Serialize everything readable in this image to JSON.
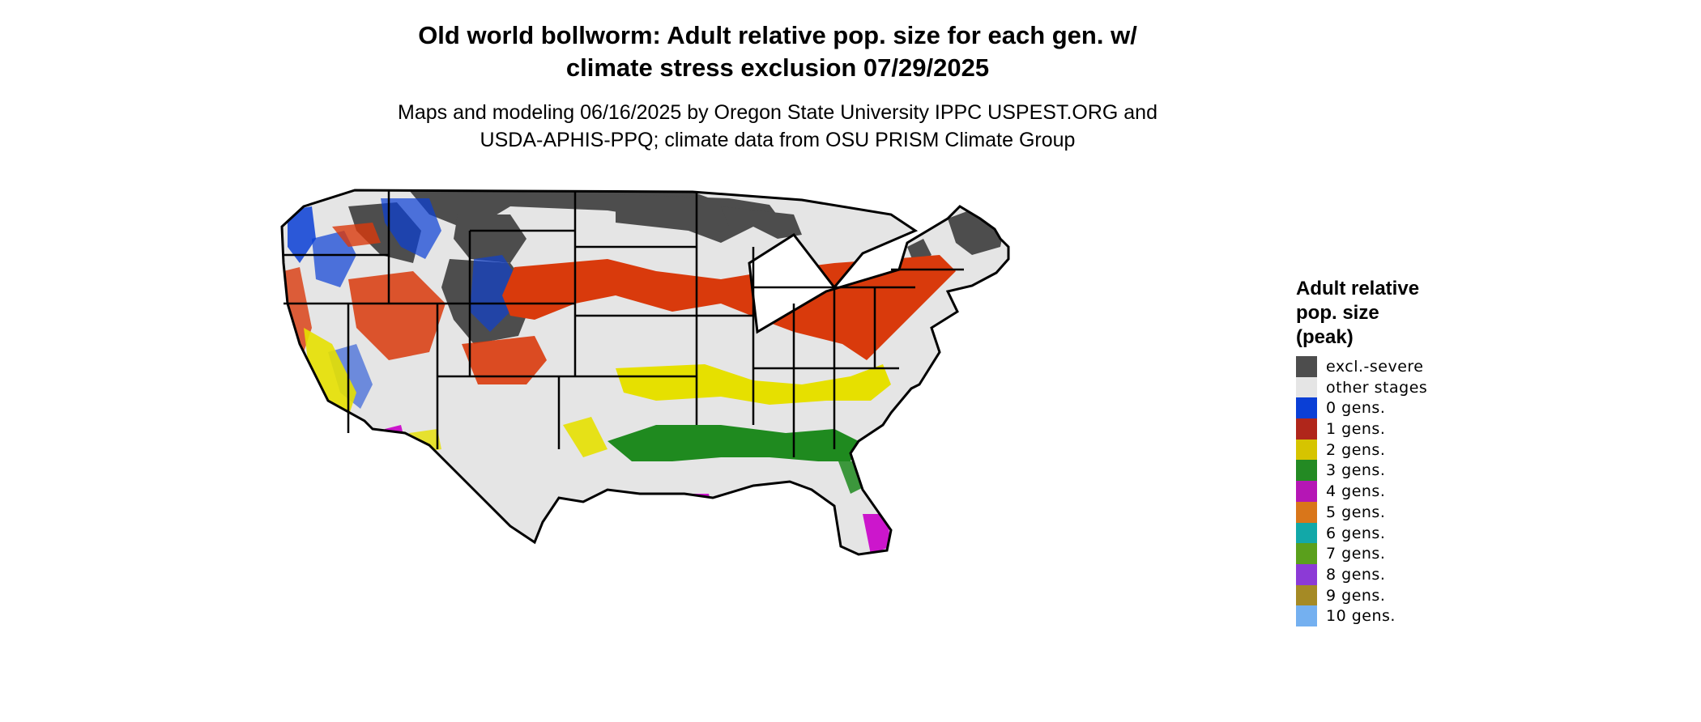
{
  "title": {
    "line1": "Old world bollworm: Adult relative pop. size for each gen. w/",
    "line2": "climate stress exclusion 07/29/2025"
  },
  "subtitle": {
    "line1": "Maps and modeling 06/16/2025 by Oregon State University IPPC USPEST.ORG and",
    "line2": "USDA-APHIS-PPQ; climate data from OSU PRISM Climate Group"
  },
  "legend": {
    "title_lines": [
      "Adult relative",
      "pop. size",
      "(peak)"
    ],
    "items": [
      {
        "label": "excl.-severe",
        "color": "#4d4d4d"
      },
      {
        "label": "other stages",
        "color": "#e5e5e5"
      },
      {
        "label": "0 gens.",
        "color": "#0a3fd6"
      },
      {
        "label": "1 gens.",
        "color": "#b0261b"
      },
      {
        "label": "2 gens.",
        "color": "#d6c400"
      },
      {
        "label": "3 gens.",
        "color": "#238a23"
      },
      {
        "label": "4 gens.",
        "color": "#b516b5"
      },
      {
        "label": "5 gens.",
        "color": "#d9761a"
      },
      {
        "label": "6 gens.",
        "color": "#12a8a8"
      },
      {
        "label": "7 gens.",
        "color": "#5aa01c"
      },
      {
        "label": "8 gens.",
        "color": "#8c3ad6"
      },
      {
        "label": "9 gens.",
        "color": "#a58a25"
      },
      {
        "label": "10 gens.",
        "color": "#74b0f0"
      }
    ]
  },
  "map_colors": {
    "excluded": "#4d4d4d",
    "other": "#e5e5e5",
    "gen0": "#0a3fd6",
    "gen1": "#d93a0c",
    "gen2": "#e6e000",
    "gen3": "#1f8a1f",
    "gen4": "#cc16cc",
    "borders": "#000000"
  }
}
